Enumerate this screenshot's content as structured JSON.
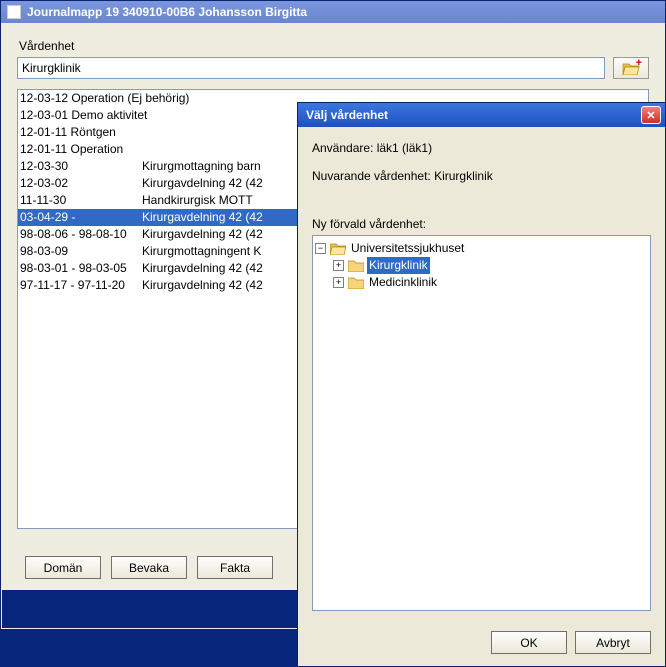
{
  "colors": {
    "accent": "#316ac5",
    "panel_bg": "#ece9d8",
    "body_bg": "#efece0",
    "border_input": "#7f9db9",
    "window_border": "#0a246a",
    "dark_strip": "#08257c",
    "titlebar_inactive_from": "#7a96df",
    "titlebar_inactive_to": "#6b86cf",
    "titlebar_active_from": "#3b77dd",
    "titlebar_active_to": "#1f4fc0"
  },
  "parent_window": {
    "title": "Journalmapp 19 340910-00B6  Johansson Birgitta",
    "field_label": "Vårdenhet",
    "field_value": "Kirurgklinik",
    "open_button_icon": "folder-plus-icon",
    "buttons": [
      "Domän",
      "Bevaka",
      "Fakta"
    ],
    "list": {
      "columns": [
        "date",
        "description"
      ],
      "selected_index": 7,
      "rows": [
        {
          "date": "12-03-12",
          "desc": "Operation (Ej behörig)"
        },
        {
          "date": "12-03-01",
          "desc": "Demo aktivitet"
        },
        {
          "date": "12-01-11",
          "desc": "Röntgen"
        },
        {
          "date": "12-01-11",
          "desc": "Operation"
        },
        {
          "date": "12-03-30",
          "desc": "Kirurgmottagning barn"
        },
        {
          "date": "12-03-02",
          "desc": "Kirurgavdelning 42 (42"
        },
        {
          "date": "11-11-30",
          "desc": "Handkirurgisk MOTT"
        },
        {
          "date": "03-04-29 -",
          "desc": "Kirurgavdelning 42 (42"
        },
        {
          "date": "98-08-06 - 98-08-10",
          "desc": "Kirurgavdelning 42 (42"
        },
        {
          "date": "98-03-09",
          "desc": "Kirurgmottagningent K"
        },
        {
          "date": "98-03-01 - 98-03-05",
          "desc": "Kirurgavdelning 42 (42"
        },
        {
          "date": "97-11-17 - 97-11-20",
          "desc": "Kirurgavdelning 42 (42"
        }
      ]
    }
  },
  "dialog": {
    "title": "Välj vårdenhet",
    "user_line": "Användare: läk1 (läk1)",
    "current_line": "Nuvarande vårdenhet: Kirurgklinik",
    "new_label": "Ny förvald vårdenhet:",
    "tree": {
      "selected_path": "root.0",
      "nodes": [
        {
          "label": "Universitetssjukhuset",
          "icon": "folder-open-icon",
          "expanded": true,
          "children": [
            {
              "label": "Kirurgklinik",
              "icon": "folder-icon",
              "expandable": true,
              "selected": true
            },
            {
              "label": "Medicinklinik",
              "icon": "folder-icon",
              "expandable": true
            }
          ]
        }
      ]
    },
    "buttons": {
      "ok": "OK",
      "cancel": "Avbryt"
    }
  }
}
